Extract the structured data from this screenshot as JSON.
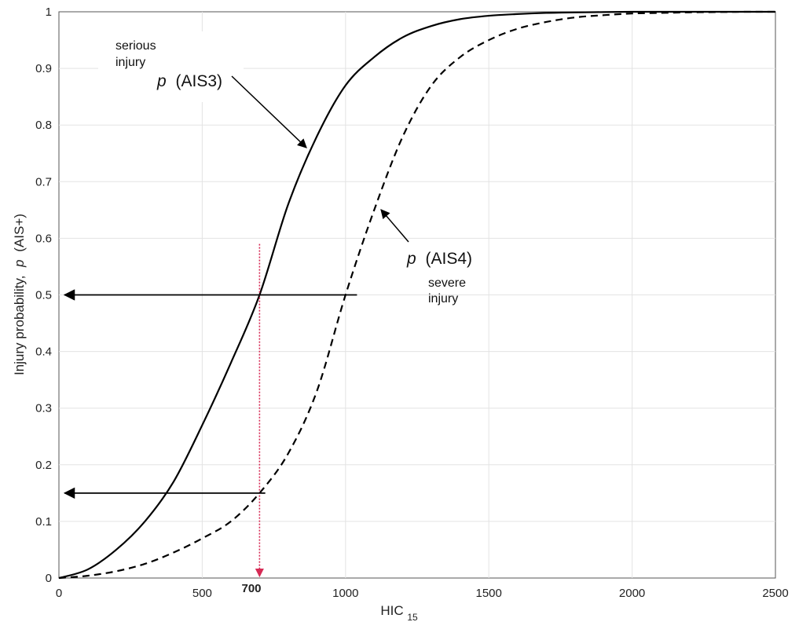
{
  "chart_data": {
    "type": "line",
    "title": "",
    "xlabel": "HIC",
    "xlabel_subscript": "15",
    "ylabel": "Injury probability,",
    "ylabel_italic": "p",
    "ylabel_tail": "(AIS+)",
    "xlim": [
      0,
      2500
    ],
    "ylim": [
      0,
      1
    ],
    "x_ticks": [
      0,
      500,
      1000,
      1500,
      2000,
      2500
    ],
    "y_ticks": [
      0,
      0.1,
      0.2,
      0.3,
      0.4,
      0.5,
      0.6,
      0.7,
      0.8,
      0.9,
      1
    ],
    "grid": true,
    "x": [
      0,
      100,
      200,
      300,
      400,
      500,
      600,
      700,
      800,
      900,
      1000,
      1100,
      1200,
      1300,
      1400,
      1500,
      1600,
      1700,
      1800,
      1900,
      2000,
      2100,
      2200,
      2300,
      2400,
      2500
    ],
    "series": [
      {
        "label_italic": "p",
        "label": "(AIS3)",
        "note": "serious injury",
        "style": "solid",
        "values": [
          0.0,
          0.015,
          0.05,
          0.1,
          0.17,
          0.27,
          0.38,
          0.5,
          0.66,
          0.78,
          0.87,
          0.92,
          0.955,
          0.975,
          0.987,
          0.993,
          0.996,
          0.998,
          0.999,
          0.9995,
          1.0,
          1.0,
          1.0,
          1.0,
          1.0,
          1.0
        ]
      },
      {
        "label_italic": "p",
        "label": "(AIS4)",
        "note": "severe injury",
        "style": "dashed",
        "values": [
          0.0,
          0.004,
          0.012,
          0.025,
          0.045,
          0.07,
          0.1,
          0.15,
          0.22,
          0.33,
          0.5,
          0.65,
          0.78,
          0.87,
          0.92,
          0.95,
          0.97,
          0.982,
          0.99,
          0.994,
          0.997,
          0.998,
          0.999,
          0.9995,
          1.0,
          1.0
        ]
      }
    ],
    "annotations": {
      "serious_line1": "serious",
      "serious_line2": "injury",
      "severe_line1": "severe",
      "severe_line2": "injury",
      "marker_value": "700",
      "marker_x": 700,
      "marker_color": "#d62b55",
      "arrow_high_y": 0.5,
      "arrow_high_from_x": 1040,
      "arrow_low_y": 0.15,
      "arrow_low_from_x": 720
    }
  }
}
